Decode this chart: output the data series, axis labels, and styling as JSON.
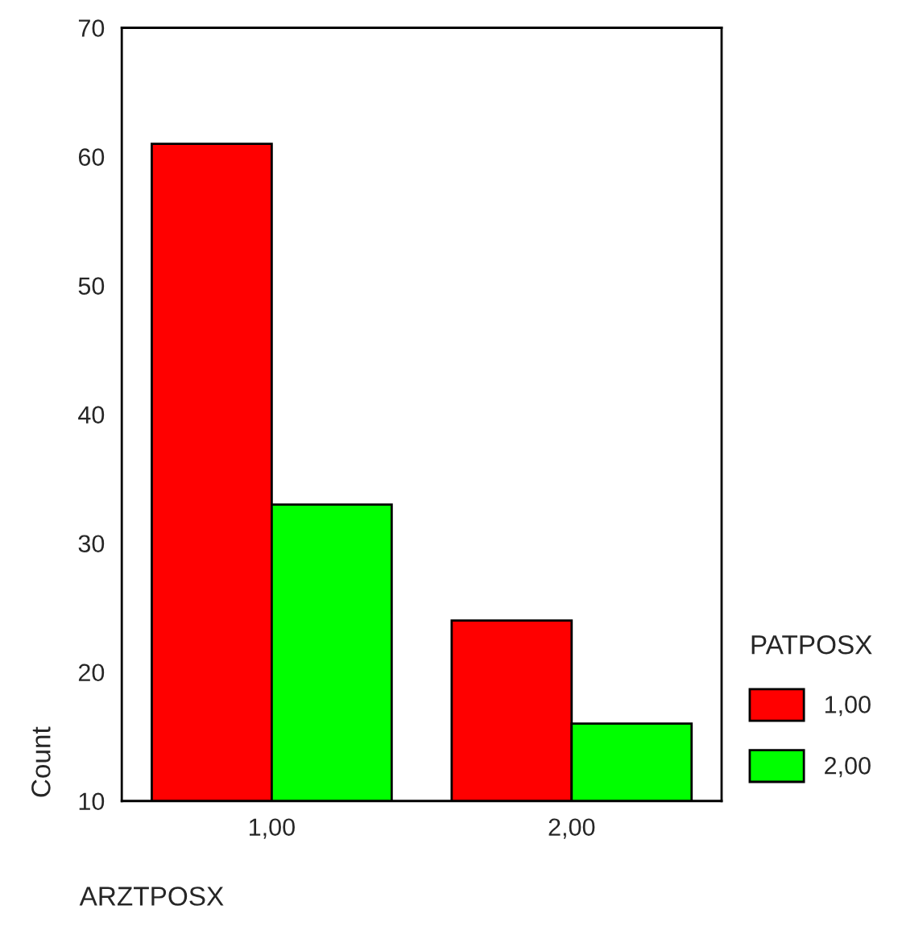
{
  "chart_data": {
    "type": "bar",
    "categories": [
      "1,00",
      "2,00"
    ],
    "series": [
      {
        "name": "1,00",
        "color": "#ff0000",
        "values": [
          61,
          24
        ]
      },
      {
        "name": "2,00",
        "color": "#00ff00",
        "values": [
          33,
          16
        ]
      }
    ],
    "xlabel": "ARZTPOSX",
    "ylabel": "Count",
    "legend_title": "PATPOSX",
    "legend": "right",
    "ylim": [
      10,
      70
    ],
    "yticks": [
      10,
      20,
      30,
      40,
      50,
      60,
      70
    ],
    "grid": false
  }
}
